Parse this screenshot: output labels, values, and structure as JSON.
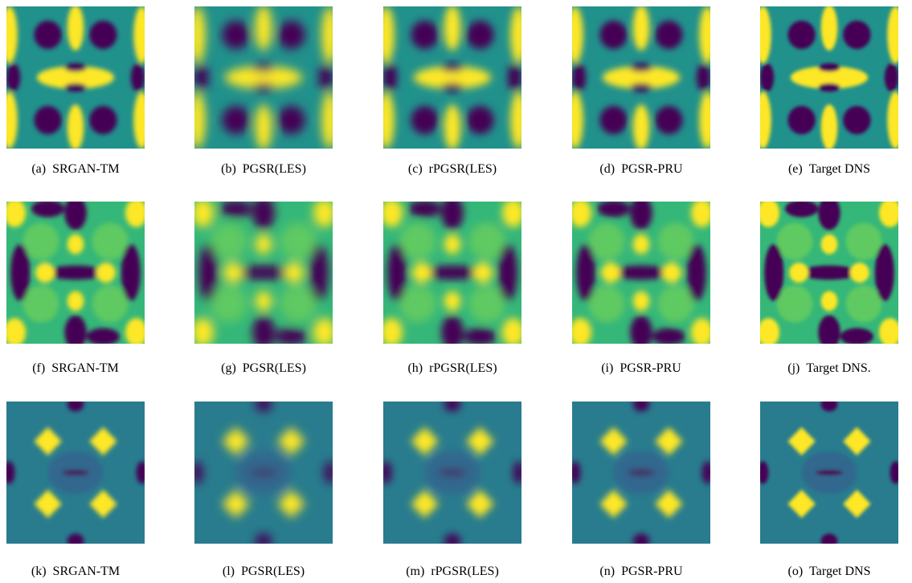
{
  "figure": {
    "panels": [
      {
        "label": "(a)",
        "caption": "SRGAN-TM"
      },
      {
        "label": "(b)",
        "caption": "PGSR(LES)"
      },
      {
        "label": "(c)",
        "caption": "rPGSR(LES)"
      },
      {
        "label": "(d)",
        "caption": "PGSR-PRU"
      },
      {
        "label": "(e)",
        "caption": "Target DNS"
      },
      {
        "label": "(f)",
        "caption": "SRGAN-TM"
      },
      {
        "label": "(g)",
        "caption": "PGSR(LES)"
      },
      {
        "label": "(h)",
        "caption": "rPGSR(LES)"
      },
      {
        "label": "(i)",
        "caption": "PGSR-PRU"
      },
      {
        "label": "(j)",
        "caption": "Target DNS."
      },
      {
        "label": "(k)",
        "caption": "SRGAN-TM"
      },
      {
        "label": "(l)",
        "caption": "PGSR(LES)"
      },
      {
        "label": "(m)",
        "caption": "rPGSR(LES)"
      },
      {
        "label": "(n)",
        "caption": "PGSR-PRU"
      },
      {
        "label": "(o)",
        "caption": "Target DNS"
      }
    ]
  }
}
